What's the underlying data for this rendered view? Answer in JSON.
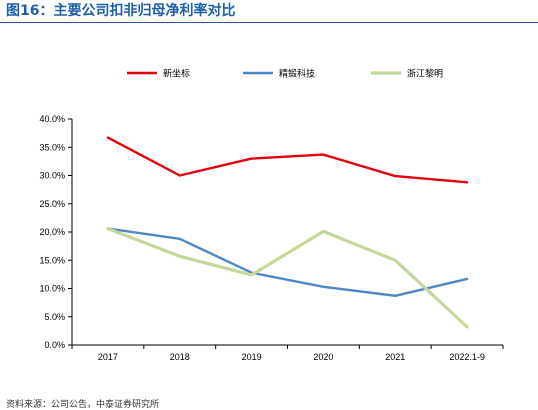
{
  "figure": {
    "title": "图16：主要公司扣非归母净利率对比"
  },
  "source_note": "资料来源：公司公告，中泰证券研究所",
  "chart_data": {
    "type": "line",
    "title": "图16：主要公司扣非归母净利率对比",
    "categories": [
      "2017",
      "2018",
      "2019",
      "2020",
      "2021",
      "2022.1-9"
    ],
    "ylim": [
      0,
      40
    ],
    "yticks": [
      "0.0%",
      "5.0%",
      "10.0%",
      "15.0%",
      "20.0%",
      "25.0%",
      "30.0%",
      "35.0%",
      "40.0%"
    ],
    "grid": false,
    "legend_position": "top",
    "series": [
      {
        "name": "新坐标",
        "color": "#e3000f",
        "values": [
          36.7,
          30.0,
          33.0,
          33.7,
          29.9,
          28.8
        ]
      },
      {
        "name": "精锻科技",
        "color": "#4f86c6",
        "values": [
          20.6,
          18.8,
          12.8,
          10.3,
          8.7,
          11.7
        ]
      },
      {
        "name": "浙江黎明",
        "color": "#c5d89c",
        "values": [
          20.6,
          15.7,
          12.4,
          20.1,
          15.0,
          3.2
        ]
      }
    ]
  }
}
